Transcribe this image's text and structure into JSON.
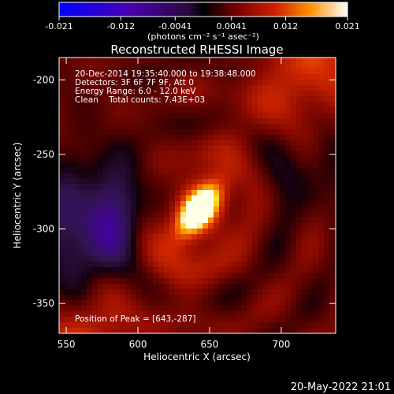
{
  "colorbar": {
    "ticks": [
      "-0.021",
      "-0.012",
      "-0.0041",
      "0.0041",
      "0.012",
      "0.021"
    ],
    "tick_values": [
      -0.021,
      -0.012,
      -0.0041,
      0.0041,
      0.012,
      0.021
    ],
    "unit_label": "(photons cm⁻² s⁻¹ asec⁻²)",
    "range": [
      -0.021,
      0.021
    ]
  },
  "chart_data": {
    "type": "heatmap",
    "title": "Reconstructed RHESSI Image",
    "xlabel": "Heliocentric X (arcsec)",
    "ylabel": "Heliocentric Y (arcsec)",
    "xlim": [
      545,
      738
    ],
    "ylim": [
      -370,
      -185
    ],
    "xticks": [
      550,
      600,
      650,
      700
    ],
    "yticks": [
      -200,
      -250,
      -300,
      -350
    ],
    "peak": {
      "x": 643,
      "y": -287
    },
    "colormap": [
      "#0000ff",
      "#4a00b0",
      "#3a1a50",
      "#000000",
      "#5a0000",
      "#b01a00",
      "#f07000",
      "#ffd000",
      "#ffffff"
    ],
    "annotations": {
      "line1": "20-Dec-2014 19:35:40.000 to 19:38:48.000",
      "line2": "Detectors: 3F 6F 7F 9F, Att 0",
      "line3": "Energy Range: 6.0 - 12.0 keV",
      "line4": "Clean    Total counts: 7.43E+03",
      "peak_label": "Position of Peak = [643,-287]"
    }
  },
  "footer": {
    "timestamp": "20-May-2022 21:01"
  }
}
